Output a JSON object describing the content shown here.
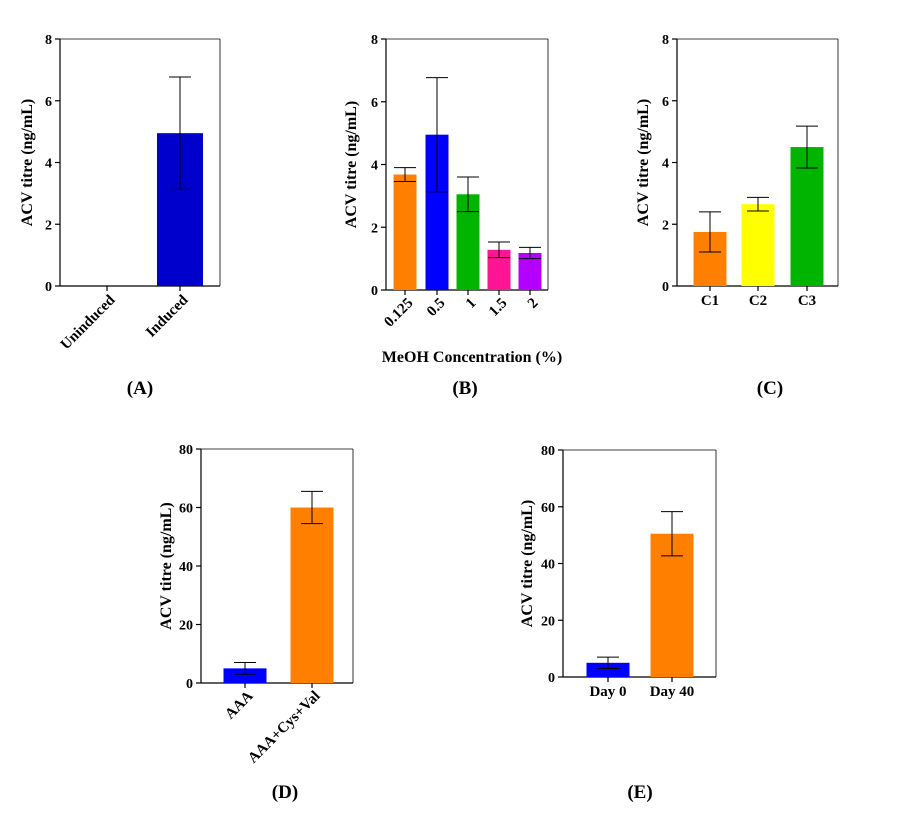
{
  "chart_data": [
    {
      "type": "bar",
      "panel": "(A)",
      "ylabel": "ACV titre (ng/mL)",
      "xlabel": "",
      "ylim": [
        0,
        8
      ],
      "yticks": [
        "0",
        "2",
        "4",
        "6",
        "8"
      ],
      "categories": [
        "Uninduced",
        "Induced"
      ],
      "values": [
        0,
        4.95
      ],
      "errors": [
        0,
        1.82
      ],
      "colors": [
        "#0000CC",
        "#0000CC"
      ],
      "rotate_labels": true
    },
    {
      "type": "bar",
      "panel": "(B)",
      "ylabel": "ACV titre (ng/mL)",
      "xlabel": "MeOH Concentration (%)",
      "ylim": [
        0,
        8
      ],
      "yticks": [
        "0",
        "2",
        "4",
        "6",
        "8"
      ],
      "categories": [
        "0.125",
        "0.5",
        "1",
        "1.5",
        "2"
      ],
      "values": [
        3.68,
        4.95,
        3.05,
        1.28,
        1.18
      ],
      "errors": [
        0.22,
        1.82,
        0.55,
        0.25,
        0.18
      ],
      "colors": [
        "#FF8000",
        "#0000FF",
        "#00B400",
        "#FF1493",
        "#B400FF"
      ],
      "rotate_labels": true
    },
    {
      "type": "bar",
      "panel": "(C)",
      "ylabel": "ACV titre (ng/mL)",
      "xlabel": "",
      "ylim": [
        0,
        8
      ],
      "yticks": [
        "0",
        "2",
        "4",
        "6",
        "8"
      ],
      "categories": [
        "C1",
        "C2",
        "C3"
      ],
      "values": [
        1.75,
        2.65,
        4.5
      ],
      "errors": [
        0.65,
        0.22,
        0.68
      ],
      "colors": [
        "#FF8000",
        "#FFFF00",
        "#00B400"
      ],
      "rotate_labels": false
    },
    {
      "type": "bar",
      "panel": "(D)",
      "ylabel": "ACV titre (ng/mL)",
      "xlabel": "",
      "ylim": [
        0,
        80
      ],
      "yticks": [
        "0",
        "20",
        "40",
        "60",
        "80"
      ],
      "categories": [
        "AAA",
        "AAA+Cys+Val"
      ],
      "values": [
        5,
        60
      ],
      "errors": [
        2,
        5.5
      ],
      "colors": [
        "#0000FF",
        "#FF8000"
      ],
      "rotate_labels": true
    },
    {
      "type": "bar",
      "panel": "(E)",
      "ylabel": "ACV titre (ng/mL)",
      "xlabel": "",
      "ylim": [
        0,
        80
      ],
      "yticks": [
        "0",
        "20",
        "40",
        "60",
        "80"
      ],
      "categories": [
        "Day 0",
        "Day 40"
      ],
      "values": [
        5,
        50.5
      ],
      "errors": [
        2,
        7.8
      ],
      "colors": [
        "#0000FF",
        "#FF8000"
      ],
      "rotate_labels": false
    }
  ]
}
